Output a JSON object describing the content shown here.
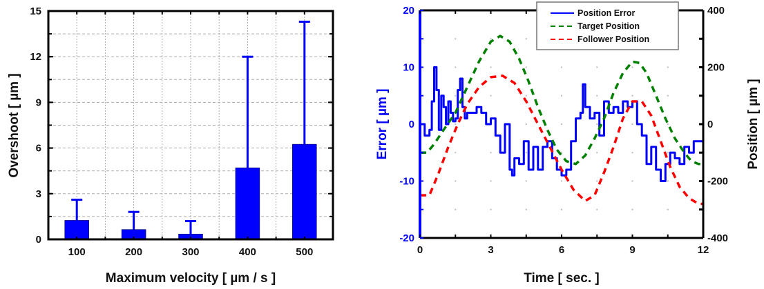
{
  "chart_data": [
    {
      "type": "bar",
      "title": "",
      "xlabel": "Maximum velocity [ µm / s ]",
      "ylabel": "Overshoot [ µm ]",
      "categories": [
        "100",
        "200",
        "300",
        "400",
        "500"
      ],
      "values": [
        1.25,
        0.65,
        0.35,
        4.7,
        6.25
      ],
      "error_upper": [
        2.6,
        1.8,
        1.2,
        12.0,
        14.3
      ],
      "ylim": [
        0,
        15
      ],
      "yticks": [
        "0",
        "3",
        "6",
        "9",
        "12",
        "15"
      ],
      "grid": true,
      "bar_color": "#0000ff"
    },
    {
      "type": "line",
      "title": "",
      "xlabel": "Time [ sec. ]",
      "ylabel": "Error [ µm ]",
      "ylabel_right": "Position [ µm ]",
      "xlim": [
        0,
        12
      ],
      "ylim": [
        -20,
        20
      ],
      "ylim_right": [
        -400,
        400
      ],
      "xticks": [
        "0",
        "3",
        "6",
        "9",
        "12"
      ],
      "yticks": [
        "-20",
        "-10",
        "0",
        "10",
        "20"
      ],
      "yticks_right": [
        "-400",
        "-200",
        "0",
        "200",
        "400"
      ],
      "grid": true,
      "legend": {
        "position": "top-right",
        "entries": [
          "Position Error",
          "Target Position",
          "Follower Position"
        ]
      },
      "series": [
        {
          "name": "Position Error",
          "axis": "left",
          "color": "#0000ff",
          "style": "solid",
          "x": [
            0,
            0.2,
            0.4,
            0.5,
            0.6,
            0.7,
            0.8,
            0.9,
            1.0,
            1.1,
            1.2,
            1.3,
            1.4,
            1.5,
            1.6,
            1.7,
            1.8,
            1.9,
            2.0,
            2.2,
            2.4,
            2.6,
            2.8,
            3.0,
            3.2,
            3.4,
            3.6,
            3.8,
            3.9,
            4.0,
            4.2,
            4.4,
            4.6,
            4.8,
            5.0,
            5.2,
            5.4,
            5.6,
            5.8,
            6.0,
            6.2,
            6.4,
            6.6,
            6.8,
            6.9,
            7.0,
            7.2,
            7.4,
            7.6,
            7.8,
            8.0,
            8.2,
            8.4,
            8.6,
            8.8,
            9.0,
            9.2,
            9.4,
            9.6,
            9.8,
            10.0,
            10.2,
            10.4,
            10.6,
            10.8,
            11.0,
            11.2,
            11.4,
            11.6,
            11.8,
            12.0
          ],
          "y": [
            0,
            -2,
            -1,
            4,
            10,
            6,
            -1,
            5,
            3,
            0,
            4,
            2,
            0.5,
            1,
            6,
            8,
            3,
            1,
            2,
            2,
            3,
            2,
            0,
            1,
            -2,
            -5,
            0,
            -8,
            -9,
            -6,
            -7,
            -3,
            -8,
            -4,
            -8,
            -4,
            -3,
            -6,
            -8,
            -9,
            -8,
            -3,
            1,
            2,
            7,
            3,
            1,
            2,
            -2,
            4,
            2,
            3,
            2,
            4,
            3,
            4,
            0,
            -2,
            -7,
            -4,
            -8,
            -10,
            -7,
            -5,
            -6,
            -7,
            -4,
            -5,
            -3,
            -3,
            0
          ]
        },
        {
          "name": "Target Position",
          "axis": "right",
          "color": "#008000",
          "style": "dashed",
          "x": [
            0,
            0.3,
            0.6,
            1.0,
            1.5,
            2.0,
            2.5,
            3.0,
            3.4,
            3.8,
            4.2,
            4.6,
            5.0,
            5.4,
            5.8,
            6.2,
            6.6,
            7.0,
            7.4,
            7.8,
            8.2,
            8.6,
            9.0,
            9.3,
            9.6,
            10.0,
            10.4,
            10.8,
            11.2,
            11.5,
            11.8,
            12.0
          ],
          "y": [
            -100,
            -100,
            -70,
            -20,
            40,
            130,
            220,
            290,
            310,
            290,
            230,
            150,
            60,
            -20,
            -90,
            -130,
            -140,
            -110,
            -50,
            20,
            110,
            180,
            220,
            215,
            180,
            100,
            20,
            -50,
            -100,
            -130,
            -140,
            -140
          ]
        },
        {
          "name": "Follower Position",
          "axis": "right",
          "color": "#ff0000",
          "style": "dashed",
          "x": [
            0,
            0.4,
            0.8,
            1.2,
            1.6,
            2.0,
            2.5,
            3.0,
            3.5,
            4.0,
            4.5,
            5.0,
            5.5,
            6.0,
            6.5,
            7.0,
            7.4,
            7.8,
            8.2,
            8.6,
            9.0,
            9.4,
            9.8,
            10.2,
            10.6,
            11.0,
            11.4,
            11.8,
            12.0
          ],
          "y": [
            -250,
            -250,
            -170,
            -80,
            0,
            70,
            130,
            165,
            170,
            145,
            80,
            0,
            -80,
            -160,
            -230,
            -270,
            -250,
            -170,
            -80,
            20,
            80,
            80,
            30,
            -60,
            -150,
            -220,
            -260,
            -280,
            -280
          ]
        }
      ]
    }
  ]
}
